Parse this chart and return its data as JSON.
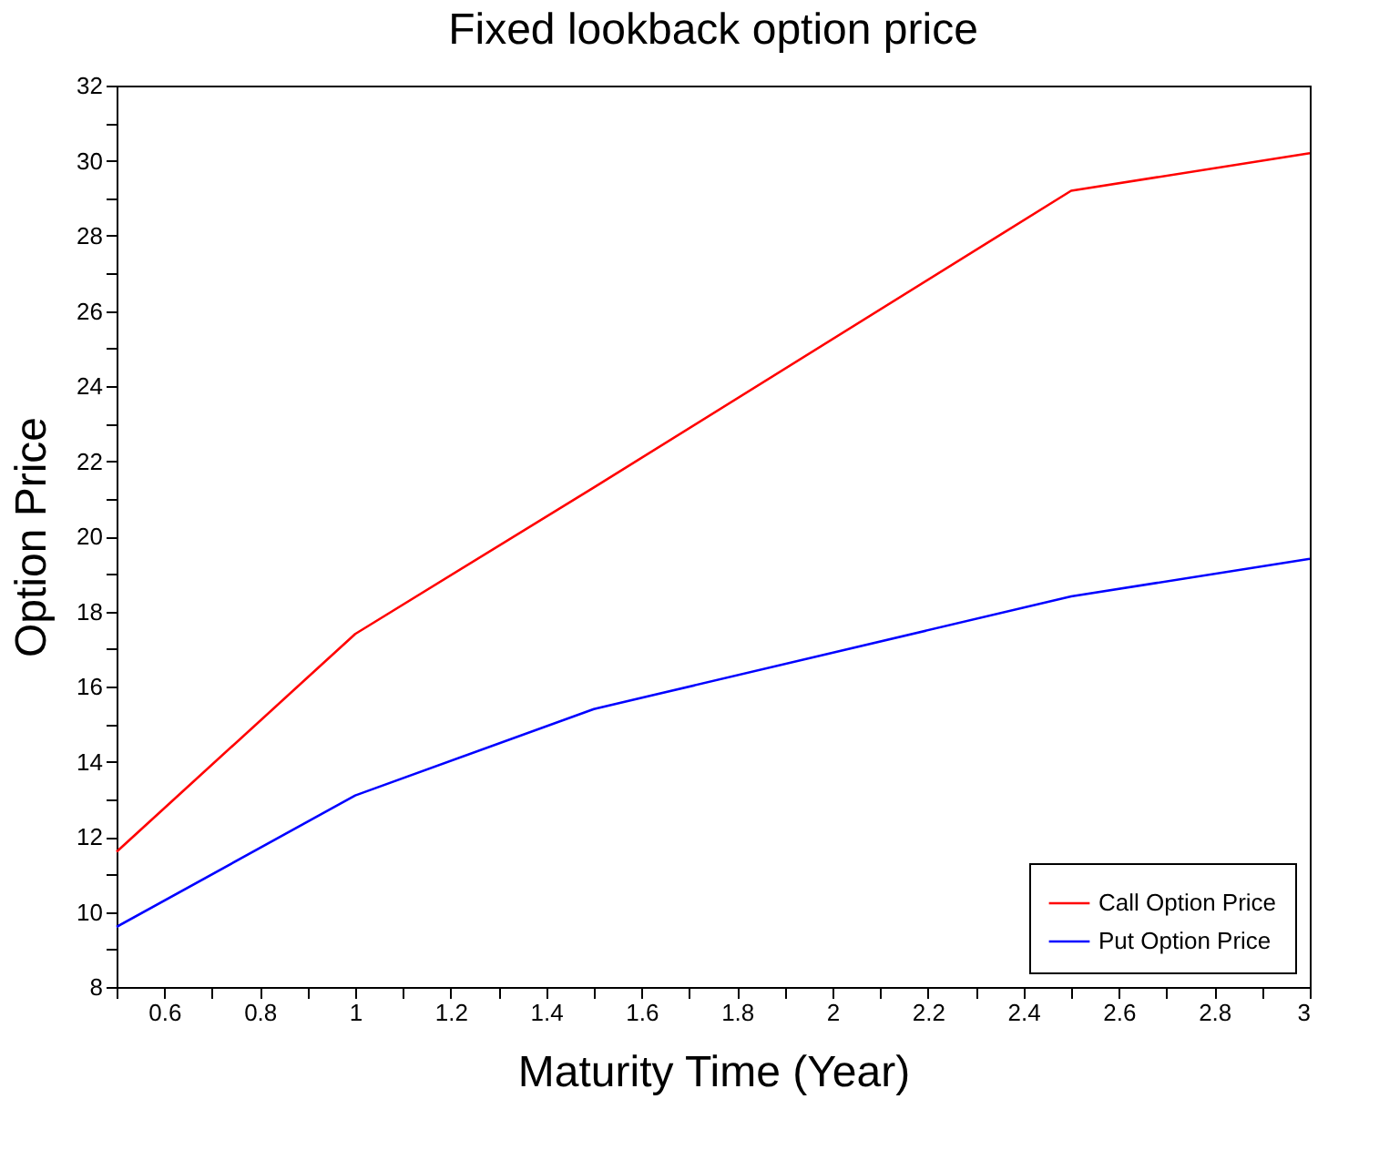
{
  "chart_data": {
    "type": "line",
    "title": "Fixed lookback option price",
    "xlabel": "Maturity Time (Year)",
    "ylabel": "Option Price",
    "x": [
      0.5,
      1,
      1.5,
      2.5,
      3
    ],
    "series": [
      {
        "name": "Call Option Price",
        "color": "#ff0000",
        "values": [
          11.6,
          17.4,
          21.3,
          29.2,
          30.2
        ]
      },
      {
        "name": "Put Option Price",
        "color": "#0000ff",
        "values": [
          9.6,
          13.1,
          15.4,
          18.4,
          19.4
        ]
      }
    ],
    "xlim": [
      0.5,
      3
    ],
    "ylim": [
      8,
      32
    ],
    "xticks": [
      {
        "value": 0.5,
        "label": null
      },
      0.6,
      {
        "value": 0.7,
        "label": null
      },
      0.8,
      {
        "value": 0.9,
        "label": null
      },
      1,
      {
        "value": 1.1,
        "label": null
      },
      1.2,
      {
        "value": 1.3,
        "label": null
      },
      1.4,
      {
        "value": 1.5,
        "label": null
      },
      1.6,
      {
        "value": 1.7,
        "label": null
      },
      1.8,
      {
        "value": 1.9,
        "label": null
      },
      2,
      {
        "value": 2.1,
        "label": null
      },
      2.2,
      {
        "value": 2.3,
        "label": null
      },
      2.4,
      {
        "value": 2.5,
        "label": null
      },
      2.6,
      {
        "value": 2.7,
        "label": null
      },
      2.8,
      {
        "value": 2.9,
        "label": null
      },
      3
    ],
    "yticks": [
      8,
      {
        "value": 9,
        "label": null
      },
      10,
      {
        "value": 11,
        "label": null
      },
      12,
      {
        "value": 13,
        "label": null
      },
      14,
      {
        "value": 15,
        "label": null
      },
      16,
      {
        "value": 17,
        "label": null
      },
      18,
      {
        "value": 19,
        "label": null
      },
      20,
      {
        "value": 21,
        "label": null
      },
      22,
      {
        "value": 23,
        "label": null
      },
      24,
      {
        "value": 25,
        "label": null
      },
      26,
      {
        "value": 27,
        "label": null
      },
      28,
      {
        "value": 29,
        "label": null
      },
      30,
      {
        "value": 31,
        "label": null
      },
      32
    ],
    "grid": false,
    "legend": "bottom right",
    "marker": "none",
    "line_style": "solid"
  }
}
